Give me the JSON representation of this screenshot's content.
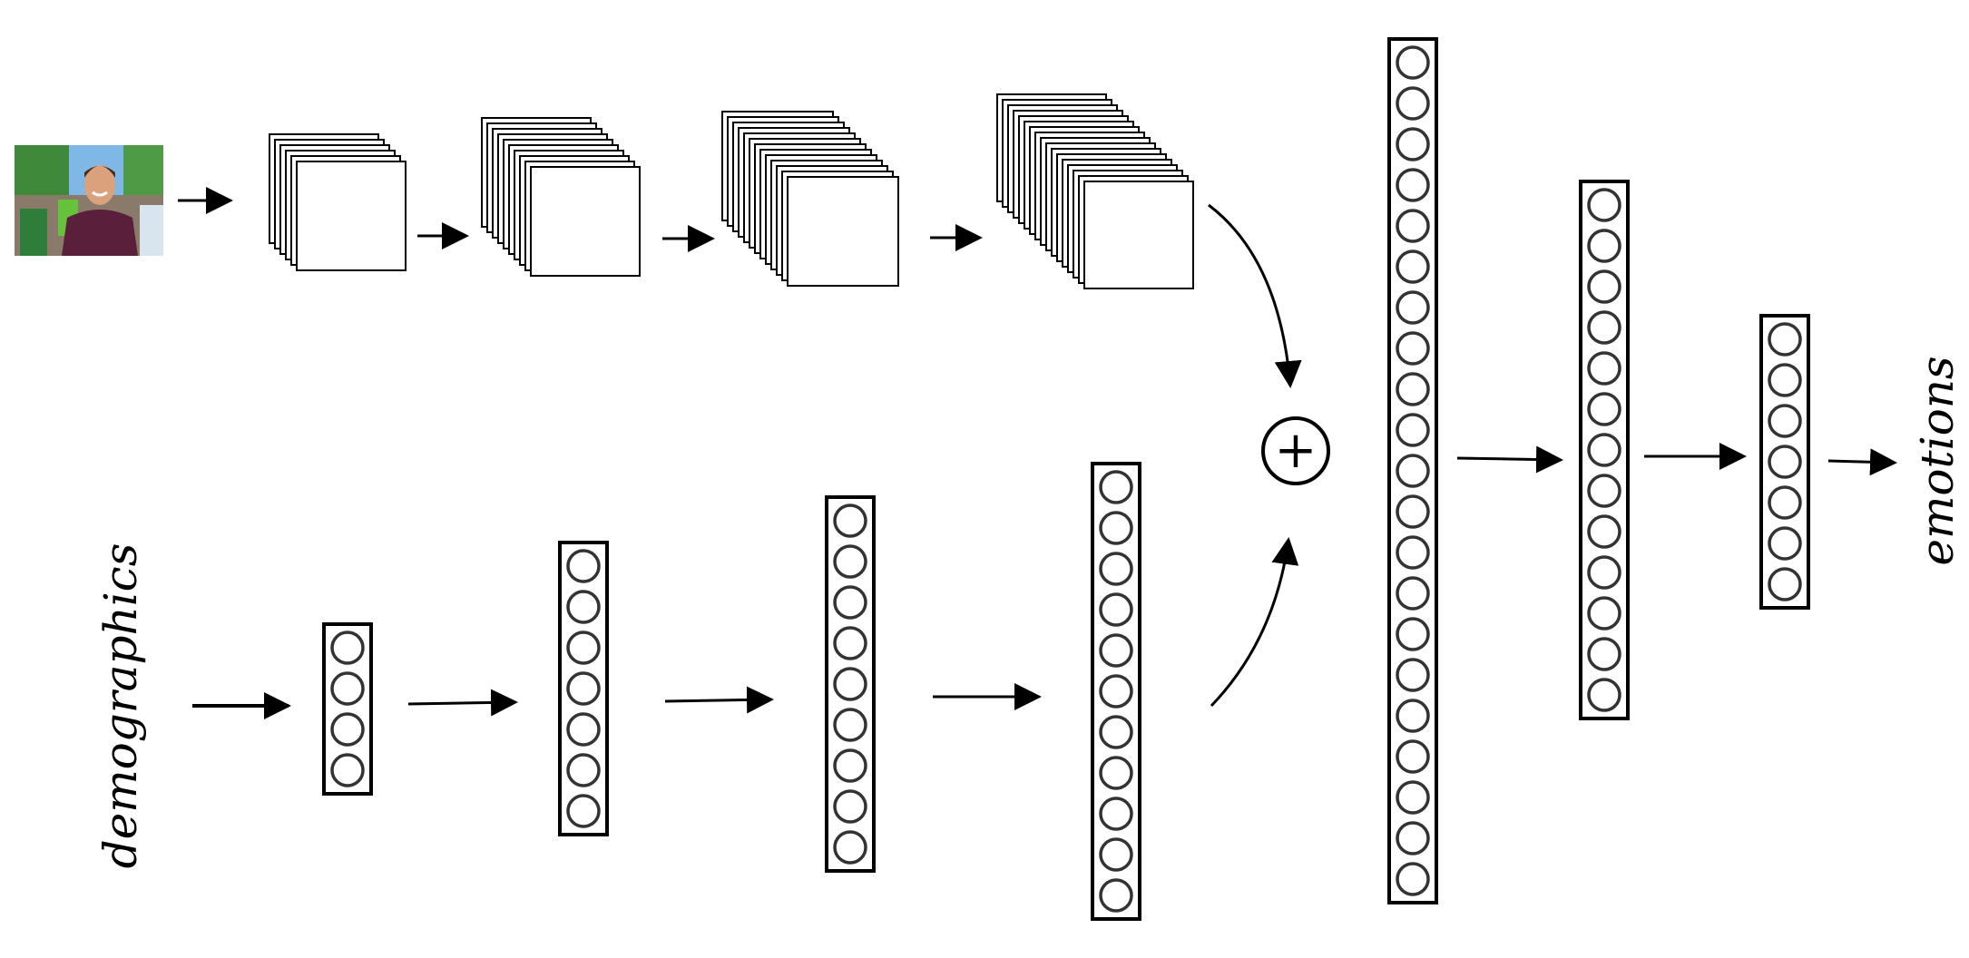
{
  "labels": {
    "input_text": "demographics",
    "output_text": "emotions",
    "merge_symbol": "+"
  },
  "input_image": {
    "kind": "photo",
    "subject": "smiling man in maroon t-shirt"
  },
  "cnn_branch": {
    "stack_counts": [
      6,
      10,
      13,
      17
    ]
  },
  "mlp_branch": {
    "layer_neurons": [
      4,
      7,
      9,
      11
    ]
  },
  "merged_branch": {
    "layer_neurons": [
      21,
      13,
      7
    ]
  },
  "colors": {
    "stroke": "#000000",
    "background": "#ffffff",
    "sky": "#7fb8e6",
    "shirt": "#5a1f3a",
    "skin": "#d9a27c",
    "foliage": "#3f8a3a"
  }
}
